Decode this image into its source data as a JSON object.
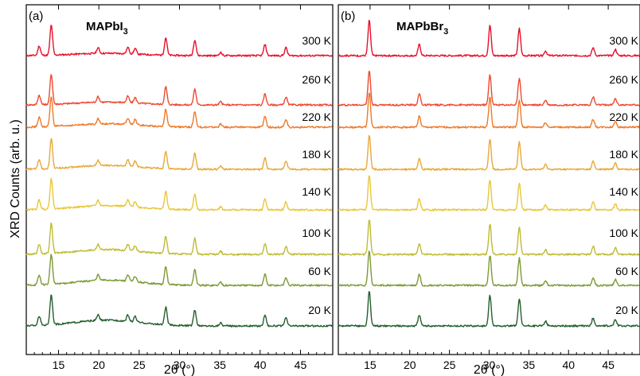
{
  "chart_data": [
    {
      "type": "line",
      "panel_label": "(a)",
      "title": {
        "main": "MAPbI",
        "sub": "3"
      },
      "xlabel": "2θ (°)",
      "ylabel": "XRD Counts (arb. u.)",
      "xlim": [
        11,
        49
      ],
      "xticks": [
        "15",
        "20",
        "25",
        "30",
        "35",
        "40",
        "45"
      ],
      "grid": false,
      "offset_stack": true,
      "peaks_2theta": [
        12.6,
        14.1,
        19.9,
        23.6,
        24.5,
        28.3,
        31.9,
        35.1,
        40.6,
        43.2
      ],
      "series": [
        {
          "label": "300 K",
          "color": "#e8102b"
        },
        {
          "label": "260 K",
          "color": "#ee4a2e"
        },
        {
          "label": "220 K",
          "color": "#ee7a2a"
        },
        {
          "label": "180 K",
          "color": "#e9a83a"
        },
        {
          "label": "140 K",
          "color": "#e8c73a"
        },
        {
          "label": "100 K",
          "color": "#bebc33"
        },
        {
          "label": "60 K",
          "color": "#7d9a35"
        },
        {
          "label": "20 K",
          "color": "#245f2e"
        }
      ]
    },
    {
      "type": "line",
      "panel_label": "(b)",
      "title": {
        "main": "MAPbBr",
        "sub": "3"
      },
      "xlabel": "2θ (°)",
      "xlim": [
        11,
        49
      ],
      "xticks": [
        "15",
        "20",
        "25",
        "30",
        "35",
        "40",
        "45"
      ],
      "grid": false,
      "offset_stack": true,
      "peaks_2theta": [
        14.9,
        21.2,
        30.1,
        33.8,
        37.1,
        43.1,
        45.9
      ],
      "series": [
        {
          "label": "300 K",
          "color": "#e8102b"
        },
        {
          "label": "260 K",
          "color": "#ee4a2e"
        },
        {
          "label": "220 K",
          "color": "#ee7a2a"
        },
        {
          "label": "180 K",
          "color": "#e9a83a"
        },
        {
          "label": "140 K",
          "color": "#e8c73a"
        },
        {
          "label": "100 K",
          "color": "#bebc33"
        },
        {
          "label": "60 K",
          "color": "#7d9a35"
        },
        {
          "label": "20 K",
          "color": "#245f2e"
        }
      ]
    }
  ]
}
